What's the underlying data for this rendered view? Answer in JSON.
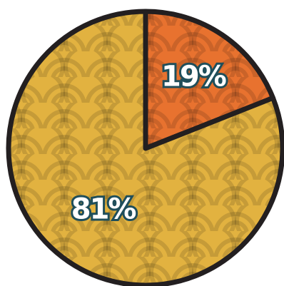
{
  "chart_data": {
    "type": "pie",
    "values": [
      19,
      81
    ],
    "value_labels": [
      "19%",
      "81%"
    ],
    "colors": [
      "#e8722f",
      "#e2b240"
    ]
  }
}
